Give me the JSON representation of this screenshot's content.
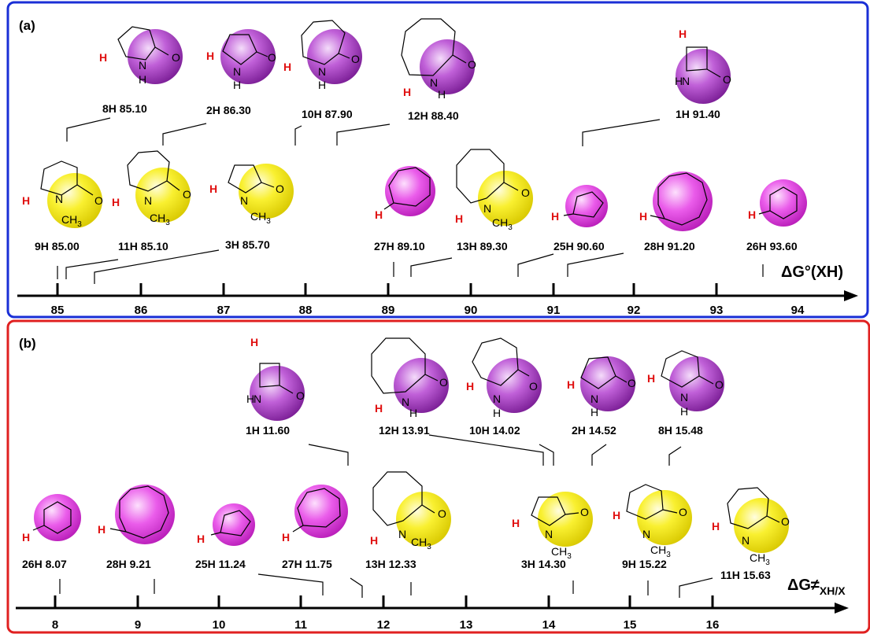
{
  "panel_a": {
    "label": "(a)",
    "axis_title": "ΔG°(XH)",
    "ticks": [
      "85",
      "86",
      "87",
      "88",
      "89",
      "90",
      "91",
      "92",
      "93",
      "94"
    ],
    "top_row": [
      {
        "id": "8H",
        "value": "85.10",
        "text": "8H 85.10"
      },
      {
        "id": "2H",
        "value": "86.30",
        "text": "2H 86.30"
      },
      {
        "id": "10H",
        "value": "87.90",
        "text": "10H 87.90"
      },
      {
        "id": "12H",
        "value": "88.40",
        "text": "12H 88.40"
      },
      {
        "id": "1H",
        "value": "91.40",
        "text": "1H 91.40"
      }
    ],
    "bottom_row": [
      {
        "id": "9H",
        "value": "85.00",
        "text": "9H 85.00"
      },
      {
        "id": "11H",
        "value": "85.10",
        "text": "11H 85.10"
      },
      {
        "id": "3H",
        "value": "85.70",
        "text": "3H 85.70"
      },
      {
        "id": "27H",
        "value": "89.10",
        "text": "27H 89.10"
      },
      {
        "id": "13H",
        "value": "89.30",
        "text": "13H 89.30"
      },
      {
        "id": "25H",
        "value": "90.60",
        "text": "25H 90.60"
      },
      {
        "id": "28H",
        "value": "91.20",
        "text": "28H 91.20"
      },
      {
        "id": "26H",
        "value": "93.60",
        "text": "26H 93.60"
      }
    ]
  },
  "panel_b": {
    "label": "(b)",
    "axis_title": "ΔG≠",
    "axis_sub": "XH/X",
    "ticks": [
      "8",
      "9",
      "10",
      "11",
      "12",
      "13",
      "14",
      "15",
      "16"
    ],
    "top_row": [
      {
        "id": "1H",
        "value": "11.60",
        "text": "1H 11.60"
      },
      {
        "id": "12H",
        "value": "13.91",
        "text": "12H 13.91"
      },
      {
        "id": "10H",
        "value": "14.02",
        "text": "10H 14.02"
      },
      {
        "id": "2H",
        "value": "14.52",
        "text": "2H 14.52"
      },
      {
        "id": "8H",
        "value": "15.48",
        "text": "8H 15.48"
      }
    ],
    "bottom_row": [
      {
        "id": "26H",
        "value": "8.07",
        "text": "26H 8.07"
      },
      {
        "id": "28H",
        "value": "9.21",
        "text": "28H 9.21"
      },
      {
        "id": "25H",
        "value": "11.24",
        "text": "25H 11.24"
      },
      {
        "id": "27H",
        "value": "11.75",
        "text": "27H 11.75"
      },
      {
        "id": "13H",
        "value": "12.33",
        "text": "13H 12.33"
      },
      {
        "id": "3H",
        "value": "14.30",
        "text": "3H 14.30"
      },
      {
        "id": "9H",
        "value": "15.22",
        "text": "9H 15.22"
      },
      {
        "id": "11H",
        "value": "15.63",
        "text": "11H 15.63"
      }
    ]
  },
  "atoms": {
    "N": "N",
    "H": "H",
    "O": "O",
    "CH3": "CH",
    "three": "3"
  },
  "colors": {
    "purple": "#9b2bb5",
    "yellow": "#f2e600",
    "magenta": "#e040e0",
    "red_h": "#e01010",
    "frame_a": "#1a2fd6",
    "frame_b": "#e02020"
  }
}
